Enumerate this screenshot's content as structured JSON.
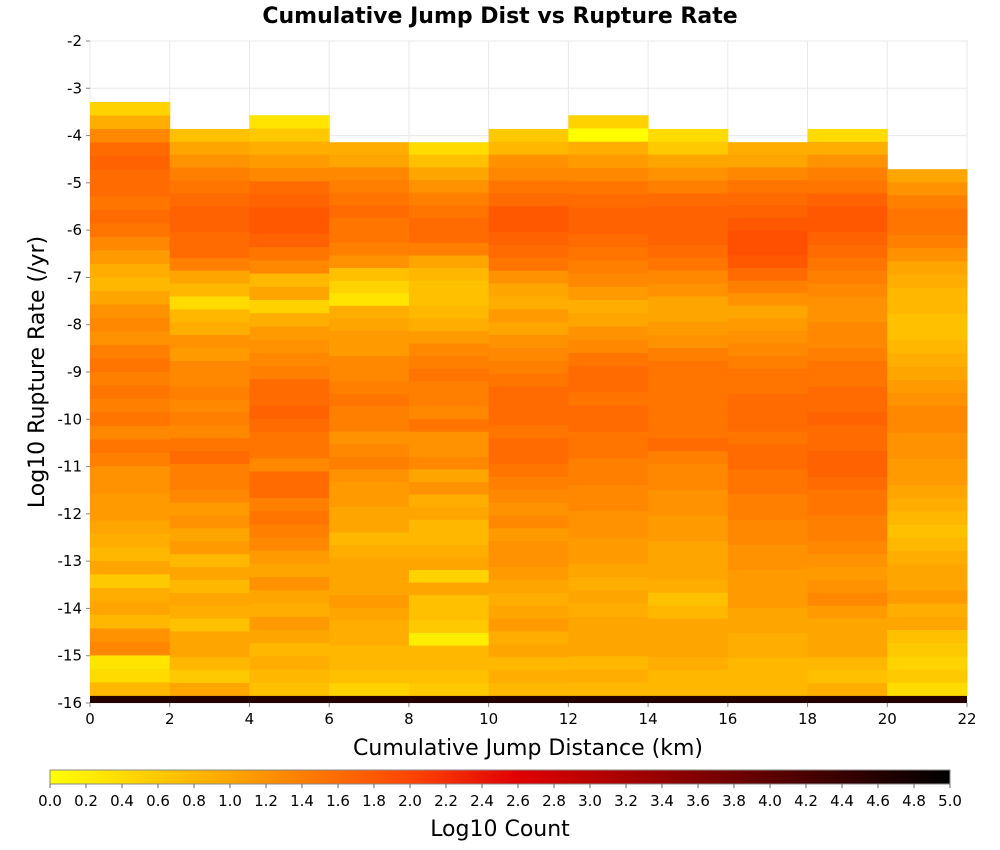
{
  "chart_data": {
    "type": "heatmap",
    "title": "Cumulative Jump Dist vs Rupture Rate",
    "xlabel": "Cumulative Jump Distance (km)",
    "ylabel": "Log10 Rupture Rate (/yr)",
    "xlim": [
      0,
      22
    ],
    "ylim": [
      -16,
      -2
    ],
    "x_ticks": [
      "0",
      "2",
      "4",
      "6",
      "8",
      "10",
      "12",
      "14",
      "16",
      "18",
      "20",
      "22"
    ],
    "y_ticks": [
      "-2",
      "-3",
      "-4",
      "-5",
      "-6",
      "-7",
      "-8",
      "-9",
      "-10",
      "-11",
      "-12",
      "-13",
      "-14",
      "-15",
      "-16"
    ],
    "grid": true,
    "x_bin_width_km": 2,
    "y_bin_height_log10": 0.2857,
    "colorbar": {
      "label": "Log10 Count",
      "range": [
        0,
        5
      ],
      "ticks": [
        "0.0",
        "0.2",
        "0.4",
        "0.6",
        "0.8",
        "1.0",
        "1.2",
        "1.4",
        "1.6",
        "1.8",
        "2.0",
        "2.2",
        "2.4",
        "2.6",
        "2.8",
        "3.0",
        "3.2",
        "3.4",
        "3.6",
        "3.8",
        "4.0",
        "4.2",
        "4.4",
        "4.6",
        "4.8",
        "5.0"
      ],
      "colors": [
        "#ffff00",
        "#ffa500",
        "#ff4500",
        "#cc0000",
        "#800000",
        "#000000"
      ]
    },
    "columns": [
      {
        "x": 0,
        "top": -3.29,
        "values": [
          0.5,
          0.9,
          1.3,
          1.6,
          1.7,
          1.6,
          1.6,
          1.5,
          1.6,
          1.5,
          1.3,
          1.1,
          0.9,
          0.8,
          1.0,
          1.2,
          1.3,
          1.2,
          1.4,
          1.5,
          1.4,
          1.5,
          1.4,
          1.5,
          1.3,
          1.5,
          1.4,
          1.2,
          1.2,
          1.1,
          1.1,
          1.0,
          0.9,
          0.8,
          1.0,
          0.6,
          0.9,
          1.0,
          0.8,
          1.2,
          1.3,
          0.3,
          0.4,
          0.8
        ]
      },
      {
        "x": 2,
        "top": -3.86,
        "values": [
          0.7,
          1.0,
          1.2,
          1.4,
          1.5,
          1.6,
          1.7,
          1.7,
          1.6,
          1.6,
          1.4,
          1.0,
          0.8,
          0.4,
          0.8,
          0.9,
          1.2,
          1.1,
          1.3,
          1.3,
          1.4,
          1.3,
          1.4,
          1.3,
          1.5,
          1.6,
          1.4,
          1.4,
          1.3,
          1.1,
          1.2,
          1.0,
          1.1,
          0.8,
          1.0,
          0.8,
          1.0,
          0.9,
          0.7,
          1.0,
          1.0,
          0.8,
          0.6,
          1.0
        ]
      },
      {
        "x": 4,
        "top": -3.57,
        "values": [
          0.3,
          0.6,
          0.9,
          1.1,
          1.3,
          1.6,
          1.7,
          1.8,
          1.8,
          1.7,
          1.5,
          1.3,
          0.8,
          1.0,
          0.5,
          0.9,
          1.1,
          1.2,
          1.3,
          1.4,
          1.6,
          1.6,
          1.7,
          1.6,
          1.5,
          1.5,
          1.3,
          1.6,
          1.6,
          1.4,
          1.5,
          1.4,
          1.3,
          1.1,
          1.0,
          1.2,
          1.0,
          0.9,
          1.1,
          1.0,
          0.8,
          0.9,
          0.8,
          0.7
        ]
      },
      {
        "x": 6,
        "top": -4.14,
        "values": [
          0.9,
          1.0,
          1.3,
          1.4,
          1.5,
          1.6,
          1.5,
          1.5,
          1.4,
          1.2,
          0.7,
          0.5,
          0.3,
          0.9,
          1.0,
          1.1,
          1.1,
          1.3,
          1.3,
          1.4,
          1.5,
          1.4,
          1.4,
          1.2,
          1.3,
          1.4,
          1.2,
          1.1,
          1.1,
          1.0,
          1.0,
          0.8,
          0.9,
          1.0,
          1.0,
          1.0,
          1.1,
          1.0,
          0.9,
          0.9,
          0.8,
          0.8,
          0.7,
          0.5
        ]
      },
      {
        "x": 8,
        "top": -4.14,
        "values": [
          0.4,
          0.7,
          1.0,
          1.2,
          1.4,
          1.5,
          1.6,
          1.6,
          1.4,
          1.0,
          0.8,
          0.7,
          0.7,
          0.8,
          0.9,
          1.1,
          1.3,
          1.4,
          1.5,
          1.4,
          1.4,
          1.3,
          1.5,
          1.2,
          1.2,
          1.3,
          1.0,
          1.2,
          0.9,
          1.0,
          0.8,
          0.8,
          0.9,
          1.0,
          0.5,
          1.0,
          0.7,
          0.7,
          0.6,
          0.2,
          0.8,
          0.8,
          0.7,
          0.6
        ]
      },
      {
        "x": 10,
        "top": -3.86,
        "values": [
          0.6,
          0.8,
          1.2,
          1.3,
          1.5,
          1.6,
          1.8,
          1.8,
          1.7,
          1.6,
          1.5,
          1.2,
          1.0,
          0.9,
          1.1,
          1.0,
          1.2,
          1.3,
          1.4,
          1.5,
          1.6,
          1.6,
          1.6,
          1.5,
          1.6,
          1.6,
          1.5,
          1.4,
          1.3,
          1.2,
          1.3,
          1.1,
          1.2,
          1.2,
          1.1,
          1.0,
          0.9,
          1.0,
          1.1,
          0.9,
          1.0,
          0.8,
          0.9,
          0.8
        ]
      },
      {
        "x": 12,
        "top": -3.57,
        "values": [
          0.5,
          0.0,
          0.9,
          1.1,
          1.3,
          1.5,
          1.6,
          1.7,
          1.7,
          1.6,
          1.5,
          1.4,
          1.3,
          1.1,
          0.9,
          1.0,
          1.2,
          1.3,
          1.5,
          1.6,
          1.6,
          1.5,
          1.6,
          1.6,
          1.5,
          1.5,
          1.4,
          1.4,
          1.3,
          1.3,
          1.2,
          1.2,
          1.1,
          1.1,
          1.0,
          0.9,
          1.0,
          0.9,
          1.0,
          1.0,
          1.0,
          0.8,
          0.9,
          0.8
        ]
      },
      {
        "x": 14,
        "top": -3.86,
        "values": [
          0.4,
          0.6,
          1.0,
          1.2,
          1.4,
          1.6,
          1.7,
          1.7,
          1.7,
          1.6,
          1.5,
          1.3,
          1.2,
          1.0,
          1.0,
          1.1,
          1.2,
          1.4,
          1.5,
          1.5,
          1.5,
          1.5,
          1.5,
          1.5,
          1.6,
          1.4,
          1.3,
          1.3,
          1.2,
          1.2,
          1.1,
          1.1,
          1.0,
          1.0,
          1.0,
          0.9,
          0.7,
          0.8,
          1.0,
          1.0,
          1.0,
          0.9,
          0.8,
          0.8
        ]
      },
      {
        "x": 16,
        "top": -4.14,
        "values": [
          0.9,
          1.0,
          1.3,
          1.5,
          1.6,
          1.7,
          1.8,
          1.9,
          1.9,
          1.8,
          1.6,
          1.4,
          1.2,
          1.0,
          1.1,
          1.2,
          1.3,
          1.4,
          1.5,
          1.5,
          1.6,
          1.6,
          1.6,
          1.5,
          1.6,
          1.6,
          1.5,
          1.5,
          1.4,
          1.4,
          1.3,
          1.3,
          1.2,
          1.2,
          1.1,
          1.1,
          1.1,
          1.0,
          1.0,
          0.9,
          0.9,
          0.8,
          0.8,
          0.8
        ]
      },
      {
        "x": 18,
        "top": -3.86,
        "values": [
          0.4,
          0.9,
          1.2,
          1.4,
          1.5,
          1.7,
          1.8,
          1.8,
          1.7,
          1.6,
          1.5,
          1.4,
          1.3,
          1.2,
          1.2,
          1.3,
          1.3,
          1.4,
          1.5,
          1.5,
          1.6,
          1.6,
          1.7,
          1.6,
          1.6,
          1.7,
          1.7,
          1.6,
          1.5,
          1.5,
          1.4,
          1.4,
          1.3,
          1.2,
          1.1,
          1.2,
          1.3,
          1.1,
          1.0,
          1.0,
          1.0,
          0.8,
          0.7,
          0.9
        ]
      },
      {
        "x": 20,
        "top": -4.71,
        "values": [
          1.0,
          1.2,
          1.4,
          1.5,
          1.5,
          1.4,
          1.2,
          1.0,
          0.9,
          0.8,
          0.8,
          0.7,
          0.7,
          0.8,
          0.9,
          1.0,
          1.1,
          1.2,
          1.3,
          1.3,
          1.2,
          1.2,
          1.1,
          1.1,
          1.0,
          0.9,
          0.8,
          0.7,
          0.8,
          0.9,
          1.0,
          1.0,
          1.1,
          0.9,
          1.0,
          0.7,
          0.6,
          0.5,
          0.6,
          0.4
        ]
      }
    ],
    "bottom_row": {
      "y": -16,
      "note": "",
      "value": 4.6
    }
  }
}
